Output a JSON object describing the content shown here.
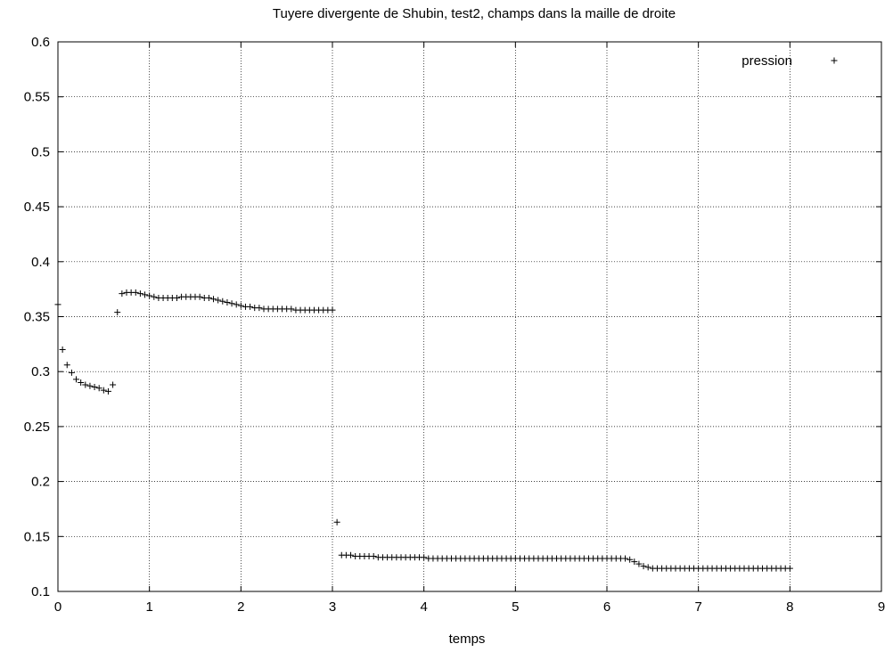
{
  "chart_data": {
    "type": "scatter",
    "title": "Tuyere divergente de Shubin, test2, champs dans la maille de droite",
    "xlabel": "temps",
    "ylabel": "",
    "xlim": [
      0,
      9
    ],
    "ylim": [
      0.1,
      0.6
    ],
    "xticks": [
      "0",
      "1",
      "2",
      "3",
      "4",
      "5",
      "6",
      "7",
      "8",
      "9"
    ],
    "yticks": [
      "0.1",
      "0.15",
      "0.2",
      "0.25",
      "0.3",
      "0.35",
      "0.4",
      "0.45",
      "0.5",
      "0.55",
      "0.6"
    ],
    "grid": true,
    "legend": "top-right",
    "marker_color": "#000000",
    "series": [
      {
        "name": "pression",
        "x": [
          0.0,
          0.05,
          0.1,
          0.15,
          0.2,
          0.25,
          0.3,
          0.35,
          0.4,
          0.45,
          0.5,
          0.55,
          0.6,
          0.65,
          0.7,
          0.75,
          0.8,
          0.85,
          0.9,
          0.95,
          1.0,
          1.05,
          1.1,
          1.15,
          1.2,
          1.25,
          1.3,
          1.35,
          1.4,
          1.45,
          1.5,
          1.55,
          1.6,
          1.65,
          1.7,
          1.75,
          1.8,
          1.85,
          1.9,
          1.95,
          2.0,
          2.05,
          2.1,
          2.15,
          2.2,
          2.25,
          2.3,
          2.35,
          2.4,
          2.45,
          2.5,
          2.55,
          2.6,
          2.65,
          2.7,
          2.75,
          2.8,
          2.85,
          2.9,
          2.95,
          3.0,
          3.05,
          3.1,
          3.15,
          3.2,
          3.25,
          3.3,
          3.35,
          3.4,
          3.45,
          3.5,
          3.55,
          3.6,
          3.65,
          3.7,
          3.75,
          3.8,
          3.85,
          3.9,
          3.95,
          4.0,
          4.05,
          4.1,
          4.15,
          4.2,
          4.25,
          4.3,
          4.35,
          4.4,
          4.45,
          4.5,
          4.55,
          4.6,
          4.65,
          4.7,
          4.75,
          4.8,
          4.85,
          4.9,
          4.95,
          5.0,
          5.05,
          5.1,
          5.15,
          5.2,
          5.25,
          5.3,
          5.35,
          5.4,
          5.45,
          5.5,
          5.55,
          5.6,
          5.65,
          5.7,
          5.75,
          5.8,
          5.85,
          5.9,
          5.95,
          6.0,
          6.05,
          6.1,
          6.15,
          6.2,
          6.25,
          6.3,
          6.35,
          6.4,
          6.45,
          6.5,
          6.55,
          6.6,
          6.65,
          6.7,
          6.75,
          6.8,
          6.85,
          6.9,
          6.95,
          7.0,
          7.05,
          7.1,
          7.15,
          7.2,
          7.25,
          7.3,
          7.35,
          7.4,
          7.45,
          7.5,
          7.55,
          7.6,
          7.65,
          7.7,
          7.75,
          7.8,
          7.85,
          7.9,
          7.95,
          8.0
        ],
        "y": [
          0.361,
          0.32,
          0.306,
          0.299,
          0.293,
          0.29,
          0.288,
          0.287,
          0.286,
          0.285,
          0.283,
          0.282,
          0.288,
          0.354,
          0.371,
          0.372,
          0.372,
          0.372,
          0.371,
          0.37,
          0.369,
          0.368,
          0.367,
          0.367,
          0.367,
          0.367,
          0.367,
          0.368,
          0.368,
          0.368,
          0.368,
          0.368,
          0.367,
          0.367,
          0.366,
          0.365,
          0.364,
          0.363,
          0.362,
          0.361,
          0.36,
          0.359,
          0.359,
          0.358,
          0.358,
          0.357,
          0.357,
          0.357,
          0.357,
          0.357,
          0.357,
          0.357,
          0.356,
          0.356,
          0.356,
          0.356,
          0.356,
          0.356,
          0.356,
          0.356,
          0.356,
          0.163,
          0.133,
          0.133,
          0.133,
          0.132,
          0.132,
          0.132,
          0.132,
          0.132,
          0.131,
          0.131,
          0.131,
          0.131,
          0.131,
          0.131,
          0.131,
          0.131,
          0.131,
          0.131,
          0.131,
          0.13,
          0.13,
          0.13,
          0.13,
          0.13,
          0.13,
          0.13,
          0.13,
          0.13,
          0.13,
          0.13,
          0.13,
          0.13,
          0.13,
          0.13,
          0.13,
          0.13,
          0.13,
          0.13,
          0.13,
          0.13,
          0.13,
          0.13,
          0.13,
          0.13,
          0.13,
          0.13,
          0.13,
          0.13,
          0.13,
          0.13,
          0.13,
          0.13,
          0.13,
          0.13,
          0.13,
          0.13,
          0.13,
          0.13,
          0.13,
          0.13,
          0.13,
          0.13,
          0.13,
          0.129,
          0.127,
          0.125,
          0.123,
          0.122,
          0.121,
          0.121,
          0.121,
          0.121,
          0.121,
          0.121,
          0.121,
          0.121,
          0.121,
          0.121,
          0.121,
          0.121,
          0.121,
          0.121,
          0.121,
          0.121,
          0.121,
          0.121,
          0.121,
          0.121,
          0.121,
          0.121,
          0.121,
          0.121,
          0.121,
          0.121,
          0.121,
          0.121,
          0.121,
          0.121,
          0.121
        ]
      }
    ]
  }
}
